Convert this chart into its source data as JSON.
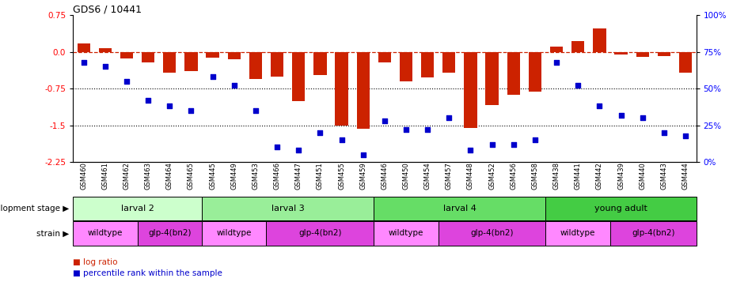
{
  "title": "GDS6 / 10441",
  "samples": [
    "GSM460",
    "GSM461",
    "GSM462",
    "GSM463",
    "GSM464",
    "GSM465",
    "GSM445",
    "GSM449",
    "GSM453",
    "GSM466",
    "GSM447",
    "GSM451",
    "GSM455",
    "GSM459",
    "GSM446",
    "GSM450",
    "GSM454",
    "GSM457",
    "GSM448",
    "GSM452",
    "GSM456",
    "GSM458",
    "GSM438",
    "GSM441",
    "GSM442",
    "GSM439",
    "GSM440",
    "GSM443",
    "GSM444"
  ],
  "log_ratio": [
    0.18,
    0.07,
    -0.13,
    -0.22,
    -0.42,
    -0.4,
    -0.12,
    -0.15,
    -0.55,
    -0.5,
    -1.0,
    -0.48,
    -1.5,
    -1.58,
    -0.22,
    -0.6,
    -0.52,
    -0.42,
    -1.55,
    -1.08,
    -0.88,
    -0.82,
    0.1,
    0.22,
    0.48,
    -0.05,
    -0.1,
    -0.08,
    -0.42
  ],
  "percentile": [
    68,
    65,
    55,
    42,
    38,
    35,
    58,
    52,
    35,
    10,
    8,
    20,
    15,
    5,
    28,
    22,
    22,
    30,
    8,
    12,
    12,
    15,
    68,
    52,
    38,
    32,
    30,
    20,
    18
  ],
  "bar_color": "#cc2200",
  "dot_color": "#0000cc",
  "dashed_color": "#cc2200",
  "ylim_left": [
    -2.25,
    0.75
  ],
  "ylim_right": [
    0,
    100
  ],
  "yticks_left": [
    0.75,
    0.0,
    -0.75,
    -1.5,
    -2.25
  ],
  "yticks_right": [
    100,
    75,
    50,
    25,
    0
  ],
  "hlines": [
    -0.75,
    -1.5
  ],
  "dev_stages": [
    {
      "label": "larval 2",
      "start": 0,
      "end": 6,
      "color": "#ccffcc"
    },
    {
      "label": "larval 3",
      "start": 6,
      "end": 14,
      "color": "#99ee99"
    },
    {
      "label": "larval 4",
      "start": 14,
      "end": 22,
      "color": "#66dd66"
    },
    {
      "label": "young adult",
      "start": 22,
      "end": 29,
      "color": "#44cc44"
    }
  ],
  "strains": [
    {
      "label": "wildtype",
      "start": 0,
      "end": 3,
      "color": "#ff88ff"
    },
    {
      "label": "glp-4(bn2)",
      "start": 3,
      "end": 6,
      "color": "#dd44dd"
    },
    {
      "label": "wildtype",
      "start": 6,
      "end": 9,
      "color": "#ff88ff"
    },
    {
      "label": "glp-4(bn2)",
      "start": 9,
      "end": 14,
      "color": "#dd44dd"
    },
    {
      "label": "wildtype",
      "start": 14,
      "end": 17,
      "color": "#ff88ff"
    },
    {
      "label": "glp-4(bn2)",
      "start": 17,
      "end": 22,
      "color": "#dd44dd"
    },
    {
      "label": "wildtype",
      "start": 22,
      "end": 25,
      "color": "#ff88ff"
    },
    {
      "label": "glp-4(bn2)",
      "start": 25,
      "end": 29,
      "color": "#dd44dd"
    }
  ],
  "dev_stage_label": "development stage",
  "strain_label": "strain",
  "legend_log": "log ratio",
  "legend_pct": "percentile rank within the sample"
}
